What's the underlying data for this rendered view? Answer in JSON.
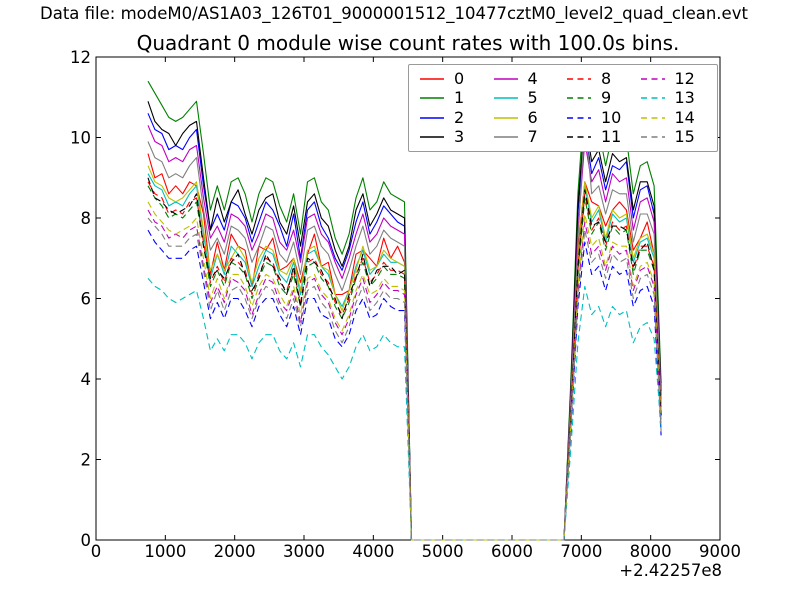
{
  "header": {
    "data_file_label": "Data file: modeM0/AS1A03_126T01_9000001512_10477cztM0_level2_quad_clean.evt"
  },
  "chart_data": {
    "type": "line",
    "title": "Quadrant 0 module wise count rates with 100.0s bins.",
    "xlabel": "",
    "ylabel": "",
    "x_offset_label": "+2.42257e8",
    "xlim": [
      0,
      9000
    ],
    "ylim": [
      0,
      12
    ],
    "xticks": [
      0,
      1000,
      2000,
      3000,
      4000,
      5000,
      6000,
      7000,
      8000,
      9000
    ],
    "yticks": [
      0,
      2,
      4,
      6,
      8,
      10,
      12
    ],
    "grid": false,
    "legend": {
      "position": "upper right",
      "columns": 4
    },
    "style": {
      "background": "#ffffff",
      "text_color": "#000000",
      "axes_edge_color": "#000000",
      "legend_edge_color": "#9a9a9a"
    },
    "x": [
      750,
      850,
      950,
      1050,
      1150,
      1250,
      1350,
      1450,
      1550,
      1650,
      1750,
      1850,
      1950,
      2050,
      2150,
      2250,
      2350,
      2450,
      2550,
      2650,
      2750,
      2850,
      2950,
      3050,
      3150,
      3250,
      3350,
      3450,
      3550,
      3650,
      3750,
      3850,
      3950,
      4050,
      4150,
      4250,
      4350,
      4450,
      4550,
      6750,
      6850,
      6950,
      7050,
      7150,
      7250,
      7350,
      7450,
      7550,
      7650,
      7750,
      7850,
      7950,
      8050,
      8150
    ],
    "series": [
      {
        "name": "0",
        "color": "#ff0000",
        "linestyle": "solid",
        "values": [
          9.6,
          9.0,
          9.1,
          8.6,
          8.8,
          8.6,
          8.9,
          8.8,
          8.1,
          6.6,
          7.4,
          6.7,
          7.6,
          7.3,
          7.2,
          6.3,
          7.3,
          7.2,
          7.5,
          6.7,
          6.8,
          7.0,
          6.4,
          7.1,
          7.6,
          6.8,
          6.9,
          6.1,
          6.1,
          6.2,
          7.1,
          7.2,
          7.0,
          6.8,
          7.5,
          7.0,
          7.3,
          6.9,
          0,
          0,
          3.2,
          7.2,
          8.9,
          8.4,
          8.3,
          7.8,
          8.2,
          8.4,
          8.2,
          7.2,
          7.5,
          7.9,
          7.1,
          3.3
        ]
      },
      {
        "name": "1",
        "color": "#008000",
        "linestyle": "solid",
        "values": [
          11.4,
          11.1,
          10.8,
          10.5,
          10.4,
          10.5,
          10.7,
          10.9,
          9.6,
          8.2,
          8.8,
          8.2,
          8.9,
          9.0,
          8.6,
          7.9,
          8.6,
          9.0,
          8.9,
          8.3,
          7.9,
          8.6,
          7.6,
          8.9,
          9.0,
          8.4,
          8.2,
          7.5,
          7.1,
          7.6,
          8.5,
          9.0,
          8.2,
          8.4,
          8.9,
          8.6,
          8.5,
          8.4,
          0,
          0,
          4.0,
          8.6,
          11.0,
          9.9,
          10.2,
          9.3,
          10.1,
          9.9,
          10.0,
          8.6,
          9.3,
          9.4,
          8.8,
          3.9
        ]
      },
      {
        "name": "2",
        "color": "#0000ff",
        "linestyle": "solid",
        "values": [
          10.6,
          10.2,
          10.1,
          9.7,
          9.8,
          9.7,
          10.0,
          10.2,
          8.8,
          7.7,
          8.1,
          7.7,
          8.4,
          8.3,
          8.0,
          7.4,
          7.9,
          8.4,
          8.2,
          7.8,
          7.3,
          8.1,
          7.0,
          8.2,
          8.4,
          7.8,
          7.5,
          7.0,
          6.7,
          7.2,
          7.9,
          8.4,
          7.6,
          7.9,
          8.3,
          8.1,
          7.9,
          7.8,
          0,
          0,
          3.7,
          8.1,
          10.3,
          9.1,
          9.5,
          8.7,
          9.3,
          9.2,
          9.4,
          8.0,
          8.7,
          8.8,
          8.1,
          3.6
        ]
      },
      {
        "name": "3",
        "color": "#000000",
        "linestyle": "solid",
        "values": [
          10.9,
          10.4,
          10.2,
          10.1,
          9.8,
          10.1,
          10.3,
          10.4,
          9.0,
          7.7,
          8.5,
          7.9,
          8.4,
          8.7,
          8.1,
          7.6,
          8.2,
          8.5,
          8.6,
          7.9,
          7.6,
          8.3,
          7.3,
          8.4,
          8.6,
          8.0,
          7.8,
          7.2,
          6.8,
          7.3,
          8.2,
          8.6,
          7.8,
          8.1,
          8.5,
          8.2,
          8.1,
          8.0,
          0,
          0,
          3.8,
          8.3,
          10.5,
          9.4,
          9.7,
          8.9,
          9.6,
          9.4,
          9.5,
          8.2,
          8.9,
          8.9,
          8.3,
          3.7
        ]
      },
      {
        "name": "4",
        "color": "#bf00bf",
        "linestyle": "solid",
        "values": [
          10.3,
          9.9,
          9.8,
          9.4,
          9.5,
          9.4,
          9.7,
          9.8,
          8.5,
          7.5,
          7.8,
          7.4,
          8.1,
          8.0,
          7.8,
          7.2,
          7.6,
          8.1,
          8.0,
          7.4,
          7.2,
          7.7,
          6.9,
          8.0,
          8.1,
          7.6,
          7.4,
          6.9,
          6.5,
          7.0,
          7.6,
          8.1,
          7.4,
          7.6,
          8.0,
          7.8,
          7.7,
          7.6,
          0,
          0,
          3.6,
          7.7,
          9.9,
          8.9,
          9.2,
          8.4,
          9.1,
          8.9,
          9.0,
          7.7,
          8.4,
          8.5,
          7.9,
          3.5
        ]
      },
      {
        "name": "5",
        "color": "#00bfbf",
        "linestyle": "solid",
        "values": [
          9.1,
          8.8,
          8.7,
          8.3,
          8.4,
          8.3,
          8.6,
          8.8,
          7.6,
          6.5,
          7.1,
          6.6,
          7.3,
          7.1,
          6.9,
          6.3,
          6.8,
          7.2,
          7.1,
          6.6,
          6.4,
          6.9,
          6.1,
          7.1,
          7.2,
          6.8,
          6.6,
          6.1,
          5.8,
          6.2,
          6.8,
          7.2,
          6.6,
          6.8,
          7.1,
          6.9,
          6.9,
          6.8,
          0,
          0,
          3.2,
          6.9,
          8.8,
          7.9,
          8.2,
          7.4,
          8.1,
          7.9,
          8.0,
          6.9,
          7.4,
          7.5,
          7.0,
          3.1
        ]
      },
      {
        "name": "6",
        "color": "#bfbf00",
        "linestyle": "solid",
        "values": [
          9.3,
          8.9,
          8.8,
          8.5,
          8.4,
          8.5,
          8.7,
          8.9,
          7.7,
          6.7,
          7.1,
          6.7,
          7.0,
          7.3,
          7.0,
          6.4,
          7.0,
          7.3,
          7.2,
          6.7,
          6.6,
          7.0,
          6.2,
          7.2,
          7.3,
          6.8,
          6.7,
          6.1,
          5.7,
          6.2,
          6.7,
          7.3,
          6.7,
          6.8,
          7.2,
          7.0,
          6.9,
          6.8,
          0,
          0,
          3.2,
          7.0,
          8.9,
          8.0,
          8.3,
          7.5,
          8.2,
          8.0,
          8.1,
          7.0,
          7.5,
          7.6,
          7.1,
          3.2
        ]
      },
      {
        "name": "7",
        "color": "#7f7f7f",
        "linestyle": "solid",
        "values": [
          9.9,
          9.5,
          9.4,
          9.0,
          9.1,
          9.0,
          9.3,
          9.5,
          8.2,
          7.2,
          7.5,
          7.1,
          7.8,
          7.7,
          7.5,
          6.9,
          7.3,
          7.8,
          7.7,
          7.1,
          6.9,
          7.4,
          6.6,
          7.7,
          7.8,
          7.3,
          7.1,
          6.6,
          6.2,
          6.7,
          7.3,
          7.8,
          7.1,
          7.3,
          7.7,
          7.5,
          7.4,
          7.3,
          0,
          0,
          3.5,
          7.4,
          10.5,
          8.6,
          8.8,
          8.1,
          8.7,
          8.6,
          8.6,
          7.4,
          8.1,
          8.1,
          7.6,
          3.4
        ]
      },
      {
        "name": "8",
        "color": "#ff0000",
        "linestyle": "dashed",
        "values": [
          8.9,
          8.6,
          8.5,
          8.1,
          8.2,
          8.1,
          8.4,
          8.5,
          7.4,
          6.4,
          6.8,
          6.4,
          7.0,
          6.9,
          6.7,
          6.1,
          6.6,
          7.0,
          6.9,
          6.4,
          6.2,
          6.7,
          5.9,
          6.9,
          7.0,
          6.6,
          6.4,
          5.9,
          5.6,
          6.0,
          6.6,
          7.0,
          6.4,
          6.6,
          6.9,
          6.7,
          6.7,
          6.6,
          0,
          0,
          3.1,
          6.7,
          8.6,
          7.7,
          8.0,
          7.3,
          7.9,
          7.7,
          7.8,
          6.7,
          7.3,
          7.3,
          6.8,
          3.0
        ]
      },
      {
        "name": "9",
        "color": "#008000",
        "linestyle": "dashed",
        "values": [
          8.8,
          8.5,
          8.3,
          8.0,
          8.1,
          8.0,
          8.2,
          8.4,
          7.3,
          6.3,
          6.7,
          6.3,
          6.9,
          6.8,
          6.6,
          6.0,
          6.5,
          6.9,
          6.8,
          6.3,
          6.1,
          6.6,
          5.8,
          6.8,
          6.9,
          6.5,
          6.3,
          5.8,
          5.5,
          5.9,
          6.5,
          6.9,
          6.3,
          6.5,
          6.8,
          6.6,
          6.6,
          6.5,
          0,
          0,
          3.0,
          6.6,
          8.5,
          7.6,
          7.9,
          7.2,
          7.8,
          7.6,
          7.7,
          6.6,
          7.2,
          7.2,
          6.7,
          3.0
        ]
      },
      {
        "name": "10",
        "color": "#0000ff",
        "linestyle": "dashed",
        "values": [
          7.7,
          7.4,
          7.2,
          7.0,
          7.0,
          7.0,
          7.2,
          7.3,
          6.4,
          5.5,
          5.9,
          5.5,
          6.0,
          6.0,
          5.7,
          5.3,
          5.8,
          6.0,
          6.0,
          5.6,
          5.3,
          5.8,
          5.1,
          6.0,
          6.0,
          5.6,
          5.5,
          5.0,
          4.8,
          5.1,
          5.7,
          6.0,
          5.5,
          5.6,
          6.0,
          5.8,
          5.7,
          5.7,
          0,
          0,
          2.7,
          5.8,
          7.4,
          6.6,
          6.8,
          6.2,
          6.8,
          6.6,
          6.7,
          5.8,
          6.2,
          6.3,
          5.8,
          2.6
        ]
      },
      {
        "name": "11",
        "color": "#000000",
        "linestyle": "dashed",
        "values": [
          9.0,
          8.5,
          8.4,
          8.2,
          8.1,
          8.2,
          8.3,
          8.6,
          7.3,
          6.5,
          6.7,
          6.5,
          6.9,
          7.1,
          6.6,
          6.2,
          6.5,
          7.1,
          6.8,
          6.5,
          6.1,
          6.8,
          5.8,
          7.0,
          6.9,
          6.7,
          6.3,
          6.0,
          5.5,
          6.1,
          6.5,
          7.1,
          6.3,
          6.7,
          6.8,
          6.8,
          6.6,
          6.7,
          0,
          0,
          3.1,
          6.8,
          8.7,
          7.8,
          7.9,
          7.4,
          7.8,
          7.8,
          7.7,
          6.8,
          7.2,
          7.4,
          6.7,
          3.1
        ]
      },
      {
        "name": "12",
        "color": "#bf00bf",
        "linestyle": "dashed",
        "values": [
          8.2,
          7.9,
          7.8,
          7.5,
          7.6,
          7.5,
          7.7,
          7.8,
          6.8,
          5.9,
          6.3,
          5.9,
          6.5,
          6.4,
          6.2,
          5.6,
          6.1,
          6.5,
          6.4,
          5.9,
          5.7,
          6.2,
          5.4,
          6.4,
          6.5,
          6.1,
          5.9,
          5.4,
          5.1,
          5.5,
          6.1,
          6.5,
          5.9,
          6.1,
          6.4,
          6.2,
          6.2,
          6.1,
          0,
          0,
          2.9,
          6.2,
          7.9,
          7.1,
          7.3,
          6.7,
          7.3,
          7.1,
          7.2,
          6.2,
          6.7,
          6.8,
          6.3,
          2.8
        ]
      },
      {
        "name": "13",
        "color": "#00bfbf",
        "linestyle": "dashed",
        "values": [
          6.5,
          6.3,
          6.2,
          6.0,
          5.9,
          6.0,
          6.1,
          6.2,
          5.5,
          4.7,
          5.0,
          4.7,
          5.1,
          5.1,
          4.9,
          4.5,
          4.9,
          5.1,
          5.1,
          4.7,
          4.5,
          4.9,
          4.3,
          5.1,
          5.1,
          4.8,
          4.6,
          4.3,
          4.0,
          4.3,
          4.8,
          5.1,
          4.7,
          4.8,
          5.1,
          4.9,
          4.8,
          4.8,
          0,
          0,
          2.3,
          4.9,
          6.3,
          5.6,
          5.8,
          5.3,
          5.8,
          5.6,
          5.7,
          4.9,
          5.3,
          5.4,
          5.0,
          2.8
        ]
      },
      {
        "name": "14",
        "color": "#bfbf00",
        "linestyle": "dashed",
        "values": [
          8.4,
          8.1,
          7.9,
          7.7,
          7.6,
          7.7,
          7.8,
          8.0,
          7.0,
          6.0,
          6.5,
          6.0,
          6.6,
          6.6,
          6.3,
          5.8,
          6.3,
          6.6,
          6.5,
          6.1,
          5.8,
          6.3,
          5.6,
          6.5,
          6.6,
          6.2,
          6.0,
          5.5,
          5.2,
          5.6,
          6.2,
          6.6,
          6.1,
          6.2,
          6.5,
          6.3,
          6.3,
          6.2,
          0,
          0,
          2.9,
          6.3,
          8.1,
          7.3,
          7.5,
          6.8,
          7.4,
          7.3,
          7.3,
          6.3,
          6.8,
          6.9,
          6.4,
          2.9
        ]
      },
      {
        "name": "15",
        "color": "#7f7f7f",
        "linestyle": "dashed",
        "values": [
          8.0,
          7.8,
          7.6,
          7.3,
          7.3,
          7.3,
          7.5,
          7.6,
          6.7,
          5.7,
          6.2,
          5.7,
          6.2,
          6.3,
          6.0,
          5.5,
          6.0,
          6.3,
          6.2,
          5.8,
          5.5,
          6.0,
          5.3,
          6.2,
          6.3,
          5.9,
          5.7,
          5.2,
          4.9,
          5.3,
          5.9,
          6.3,
          5.7,
          5.9,
          6.2,
          6.0,
          6.0,
          5.9,
          0,
          0,
          2.8,
          6.0,
          7.7,
          6.9,
          7.1,
          6.5,
          7.1,
          6.9,
          7.0,
          6.0,
          6.5,
          6.6,
          6.1,
          2.7
        ]
      }
    ]
  }
}
